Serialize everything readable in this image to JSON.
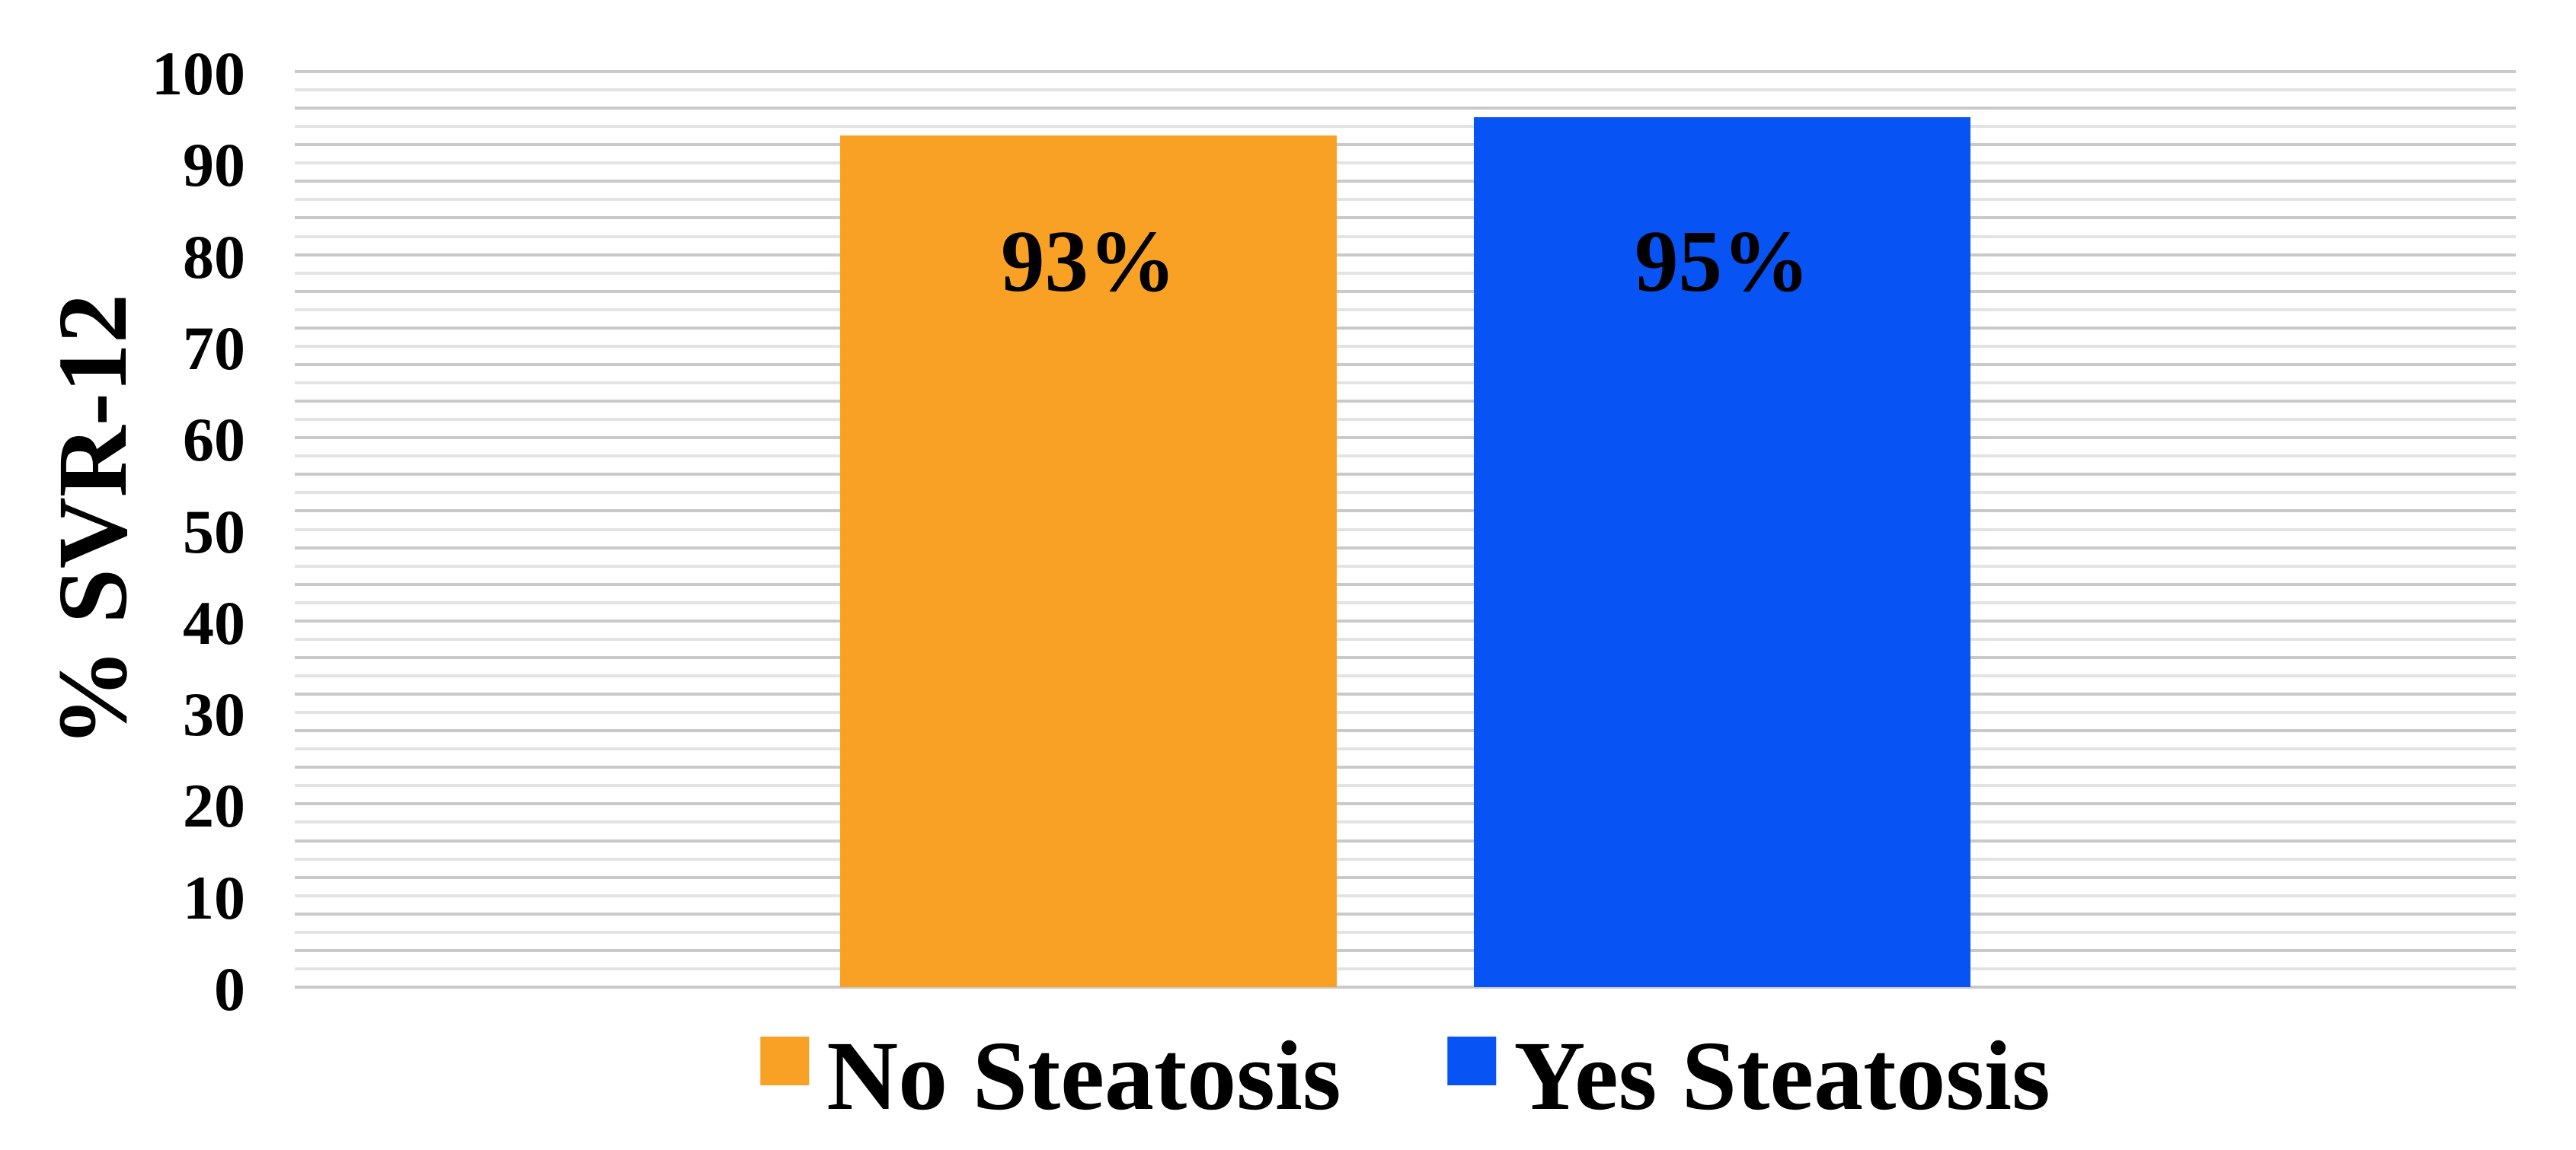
{
  "chart_data": {
    "type": "bar",
    "title": "",
    "ylabel": "% SVR-12",
    "xlabel": "",
    "categories": [
      "No Steatosis",
      "Yes Steatosis"
    ],
    "series": [
      {
        "name": "No Steatosis",
        "value": 93,
        "data_label": "93%",
        "color": "#F9A125"
      },
      {
        "name": "Yes Steatosis",
        "value": 95,
        "data_label": "95%",
        "color": "#0853F4"
      }
    ],
    "ylim": [
      0,
      100
    ],
    "yticks": [
      0,
      10,
      20,
      30,
      40,
      50,
      60,
      70,
      80,
      90,
      100
    ],
    "minor_gridline_step": 2,
    "grid": "horizontal-only",
    "legend_position": "bottom",
    "legend": [
      "No Steatosis",
      "Yes Steatosis"
    ],
    "colors": {
      "background": "#FFFFFF",
      "gridline_dark": "#C9C9C9",
      "gridline_light": "#E3E3E3",
      "text": "#000000"
    }
  }
}
